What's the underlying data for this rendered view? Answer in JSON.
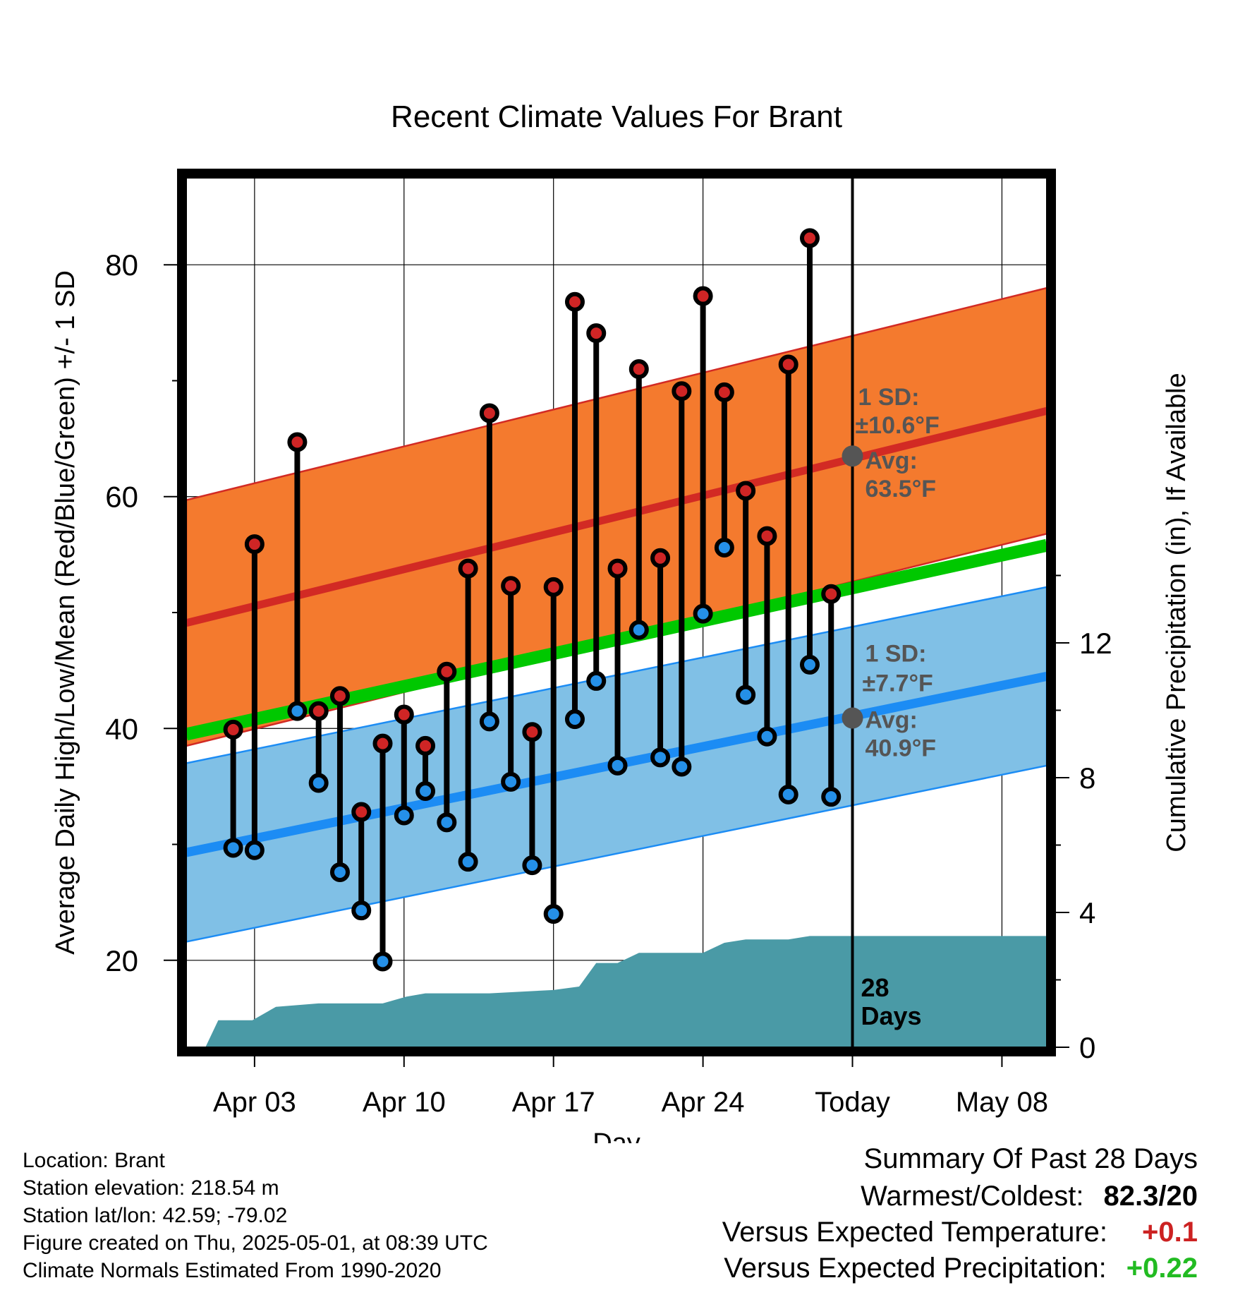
{
  "chart_data": {
    "type": "line",
    "title": "Recent Climate Values For Brant",
    "xlabel": "Day",
    "ylabel": "Average Daily High/Low/Mean (Red/Blue/Green) +/- 1 SD",
    "y2label": "Cumulative Precipitation (in), If Available",
    "x_tick_labels": [
      "Apr 03",
      "Apr 10",
      "Apr 17",
      "Apr 24",
      "Today",
      "May 08"
    ],
    "x_ticks_day": [
      3,
      10,
      17,
      24,
      31,
      38
    ],
    "xlim_day": [
      -0.2,
      40.1
    ],
    "ylim": [
      12.5,
      87.5
    ],
    "y_ticks": [
      20,
      40,
      60,
      80
    ],
    "y2lim": [
      0,
      25.8
    ],
    "y2_ticks": [
      0,
      4,
      8,
      12
    ],
    "grid": true,
    "today_day": 31,
    "today_label": "28\nDays",
    "normal_high": {
      "start": 49.1,
      "end": 67.4,
      "sd": 10.6
    },
    "normal_low": {
      "start": 29.3,
      "end": 44.5,
      "sd": 7.7
    },
    "normal_mean": {
      "start": 39.5,
      "end": 55.8
    },
    "high_avg_label": {
      "sd": "1 SD:",
      "sd_val": "±10.6°F",
      "avg": "Avg:",
      "avg_val": "63.5°F",
      "value": 63.5
    },
    "low_avg_label": {
      "sd": "1 SD:",
      "sd_val": "±7.7°F",
      "avg": "Avg:",
      "avg_val": "40.9°F",
      "value": 40.9
    },
    "days": [
      2,
      3,
      4,
      5,
      6,
      7,
      8,
      9,
      10,
      11,
      12,
      13,
      14,
      15,
      16,
      17,
      18,
      19,
      20,
      21,
      22,
      23,
      24,
      25,
      26,
      27,
      28,
      29,
      30
    ],
    "highs": [
      39.9,
      55.9,
      null,
      64.7,
      41.5,
      42.8,
      32.8,
      38.7,
      41.2,
      38.5,
      44.9,
      53.8,
      67.2,
      52.3,
      39.7,
      52.2,
      76.8,
      74.1,
      53.8,
      71.0,
      54.7,
      69.1,
      77.3,
      69.0,
      60.5,
      56.6,
      71.4,
      82.3,
      51.6
    ],
    "lows": [
      29.7,
      29.5,
      null,
      41.5,
      35.3,
      27.6,
      24.3,
      19.9,
      32.5,
      34.6,
      31.9,
      28.5,
      40.6,
      35.4,
      28.2,
      24.0,
      40.8,
      44.1,
      36.8,
      48.5,
      37.5,
      36.7,
      49.9,
      55.6,
      42.9,
      39.3,
      34.3,
      45.5,
      34.1
    ],
    "precip_cumulative": [
      [
        0.7,
        0.0
      ],
      [
        1.3,
        0.8
      ],
      [
        2.9,
        0.8
      ],
      [
        4.0,
        1.2
      ],
      [
        6.0,
        1.3
      ],
      [
        7.0,
        1.3
      ],
      [
        8.0,
        1.3
      ],
      [
        9.0,
        1.3
      ],
      [
        10.1,
        1.5
      ],
      [
        11.0,
        1.6
      ],
      [
        14.0,
        1.6
      ],
      [
        17.0,
        1.7
      ],
      [
        18.2,
        1.8
      ],
      [
        19.0,
        2.5
      ],
      [
        20.0,
        2.5
      ],
      [
        21.0,
        2.8
      ],
      [
        24.0,
        2.8
      ],
      [
        25.0,
        3.1
      ],
      [
        26.0,
        3.2
      ],
      [
        28.0,
        3.2
      ],
      [
        29.0,
        3.3
      ],
      [
        40.1,
        3.3
      ]
    ],
    "colors": {
      "high_band": "#f47a2e",
      "high_line": "#d22a24",
      "low_band": "#80c0e6",
      "low_line": "#1c8cf4",
      "mean_line": "#00c800",
      "precip": "#4a9aa6",
      "high_marker": "#cf2525",
      "low_marker": "#2590e8",
      "avg_label": "#555555"
    }
  },
  "location_info": {
    "location": "Location: Brant",
    "elevation": "Station elevation: 218.54 m",
    "latlon": "Station lat/lon: 42.59; -79.02",
    "created": "Figure created on Thu, 2025-05-01, at 08:39 UTC",
    "normals": "Climate Normals Estimated From 1990-2020"
  },
  "summary": {
    "title": "Summary Of Past 28 Days",
    "warmest_label": "Warmest/Coldest:",
    "warmest_value": "82.3/20",
    "temp_label": "Versus Expected Temperature:",
    "temp_value": "+0.1",
    "temp_color": "#cc2222",
    "precip_label": "Versus Expected Precipitation:",
    "precip_value": "+0.22",
    "precip_color": "#22bb22"
  }
}
